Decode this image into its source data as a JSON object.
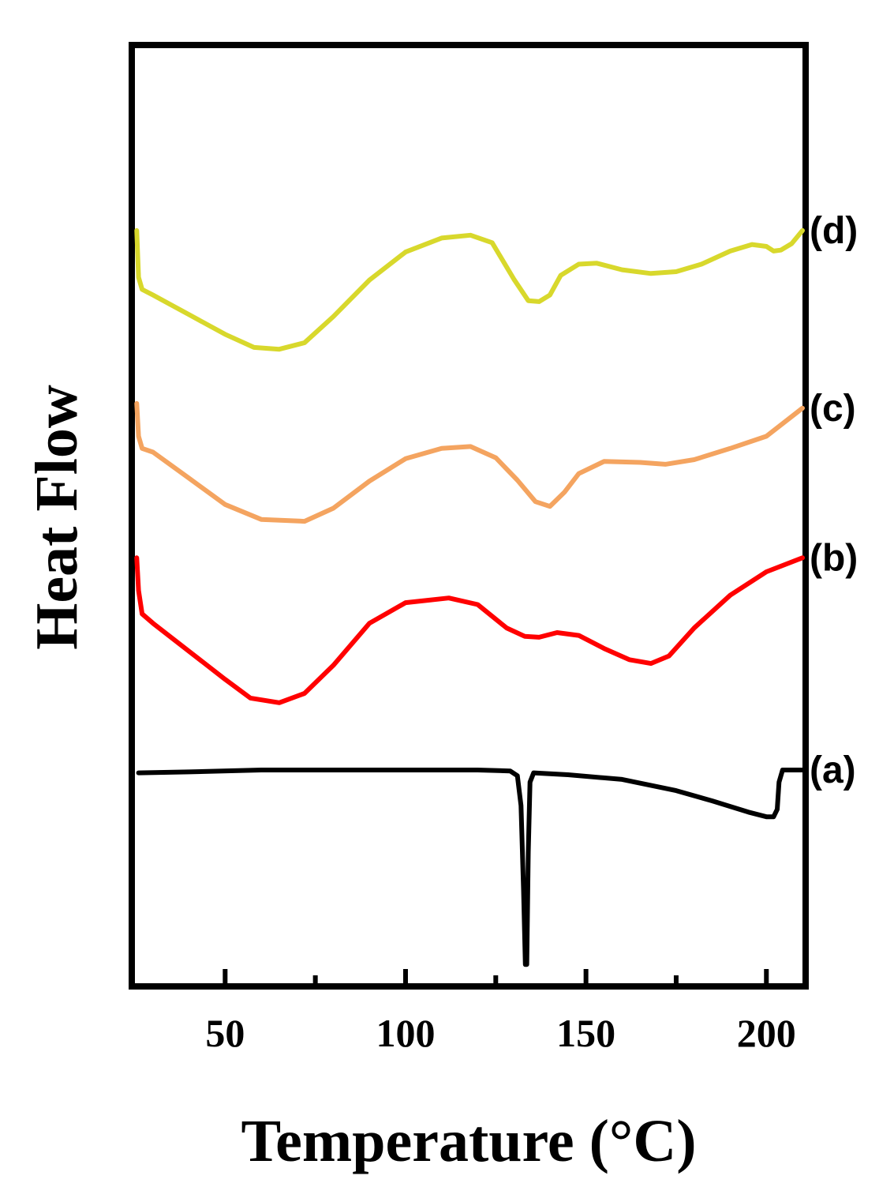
{
  "chart_data": {
    "type": "line",
    "xlabel": "Temperature (°C)",
    "ylabel": "Heat Flow",
    "xlim": [
      25,
      210
    ],
    "ylim": [
      0,
      100
    ],
    "x_ticks": [
      50,
      100,
      150,
      200
    ],
    "x_minor_ticks": [
      75,
      125,
      175
    ],
    "grid": false,
    "legend": "none",
    "y_tick_labels": "none",
    "series": [
      {
        "label": "(a)",
        "color": "#000000",
        "points": [
          [
            26,
            22.5
          ],
          [
            40,
            22.6
          ],
          [
            60,
            22.8
          ],
          [
            80,
            22.8
          ],
          [
            100,
            22.8
          ],
          [
            120,
            22.8
          ],
          [
            129,
            22.7
          ],
          [
            131,
            22.2
          ],
          [
            132,
            19
          ],
          [
            132.7,
            10
          ],
          [
            133.2,
            2
          ],
          [
            133.6,
            2
          ],
          [
            134,
            14
          ],
          [
            134.5,
            21.5
          ],
          [
            135.5,
            22.5
          ],
          [
            145,
            22.3
          ],
          [
            160,
            21.8
          ],
          [
            175,
            20.6
          ],
          [
            185,
            19.5
          ],
          [
            195,
            18.3
          ],
          [
            200,
            17.8
          ],
          [
            202,
            17.8
          ],
          [
            203,
            18.6
          ],
          [
            203.5,
            21.5
          ],
          [
            204.5,
            22.8
          ],
          [
            210,
            22.8
          ]
        ]
      },
      {
        "label": "(b)",
        "color": "#ff0000",
        "points": [
          [
            25.5,
            45.5
          ],
          [
            26,
            42
          ],
          [
            27,
            39.5
          ],
          [
            30,
            38.5
          ],
          [
            40,
            35.5
          ],
          [
            50,
            32.5
          ],
          [
            57,
            30.5
          ],
          [
            65,
            30
          ],
          [
            72,
            31
          ],
          [
            80,
            34
          ],
          [
            90,
            38.5
          ],
          [
            100,
            40.7
          ],
          [
            112,
            41.2
          ],
          [
            120,
            40.5
          ],
          [
            128,
            38
          ],
          [
            133,
            37.1
          ],
          [
            137,
            37
          ],
          [
            142,
            37.5
          ],
          [
            148,
            37.2
          ],
          [
            155,
            35.8
          ],
          [
            162,
            34.6
          ],
          [
            168,
            34.2
          ],
          [
            173,
            35
          ],
          [
            180,
            38
          ],
          [
            190,
            41.5
          ],
          [
            200,
            44
          ],
          [
            210,
            45.5
          ]
        ]
      },
      {
        "label": "(c)",
        "color": "#f4a460",
        "points": [
          [
            25.5,
            62
          ],
          [
            26,
            58.5
          ],
          [
            27,
            57.2
          ],
          [
            30,
            56.8
          ],
          [
            40,
            54
          ],
          [
            50,
            51.2
          ],
          [
            60,
            49.6
          ],
          [
            72,
            49.4
          ],
          [
            80,
            50.8
          ],
          [
            90,
            53.7
          ],
          [
            100,
            56.1
          ],
          [
            110,
            57.2
          ],
          [
            118,
            57.4
          ],
          [
            125,
            56.2
          ],
          [
            131,
            53.8
          ],
          [
            136,
            51.5
          ],
          [
            140,
            51
          ],
          [
            144,
            52.5
          ],
          [
            148,
            54.5
          ],
          [
            155,
            55.8
          ],
          [
            165,
            55.7
          ],
          [
            172,
            55.5
          ],
          [
            180,
            56
          ],
          [
            190,
            57.2
          ],
          [
            200,
            58.5
          ],
          [
            205,
            60
          ],
          [
            210,
            61.5
          ]
        ]
      },
      {
        "label": "(d)",
        "color": "#d8d82c",
        "points": [
          [
            25.5,
            80.5
          ],
          [
            26,
            75.5
          ],
          [
            27,
            74.2
          ],
          [
            30,
            73.6
          ],
          [
            40,
            71.5
          ],
          [
            50,
            69.4
          ],
          [
            58,
            68
          ],
          [
            65,
            67.8
          ],
          [
            72,
            68.5
          ],
          [
            80,
            71.3
          ],
          [
            90,
            75.2
          ],
          [
            100,
            78.2
          ],
          [
            110,
            79.7
          ],
          [
            118,
            80
          ],
          [
            124,
            79.2
          ],
          [
            130,
            75.3
          ],
          [
            134,
            73
          ],
          [
            137,
            72.9
          ],
          [
            140,
            73.6
          ],
          [
            143,
            75.7
          ],
          [
            148,
            76.9
          ],
          [
            153,
            77
          ],
          [
            160,
            76.3
          ],
          [
            168,
            75.9
          ],
          [
            175,
            76.1
          ],
          [
            182,
            76.9
          ],
          [
            190,
            78.3
          ],
          [
            196,
            79
          ],
          [
            200,
            78.8
          ],
          [
            202,
            78.3
          ],
          [
            204,
            78.4
          ],
          [
            207,
            79.1
          ],
          [
            210,
            80.5
          ]
        ]
      }
    ]
  }
}
